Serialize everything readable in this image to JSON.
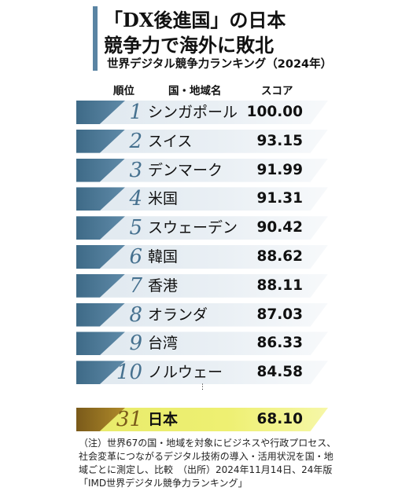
{
  "title": {
    "line1": "「DX後進国」の日本",
    "line2": "競争力で海外に敗北"
  },
  "subtitle": "世界デジタル競争力ランキング（2024年）",
  "headers": {
    "rank": "順位",
    "country": "国・地域名",
    "score": "スコア"
  },
  "colors": {
    "accent": "#5a84a3",
    "band": "#e3ebf1",
    "highlight": "#eef072"
  },
  "chart_data": {
    "type": "table",
    "columns": [
      "順位",
      "国・地域名",
      "スコア"
    ],
    "rows": [
      {
        "rank": "1",
        "country": "シンガポール",
        "score": "100.00"
      },
      {
        "rank": "2",
        "country": "スイス",
        "score": "93.15"
      },
      {
        "rank": "3",
        "country": "デンマーク",
        "score": "91.99"
      },
      {
        "rank": "4",
        "country": "米国",
        "score": "91.31"
      },
      {
        "rank": "5",
        "country": "スウェーデン",
        "score": "90.42"
      },
      {
        "rank": "6",
        "country": "韓国",
        "score": "88.62"
      },
      {
        "rank": "7",
        "country": "香港",
        "score": "88.11"
      },
      {
        "rank": "8",
        "country": "オランダ",
        "score": "87.03"
      },
      {
        "rank": "9",
        "country": "台湾",
        "score": "86.33"
      },
      {
        "rank": "10",
        "country": "ノルウェー",
        "score": "84.58"
      }
    ],
    "highlight": {
      "rank": "31",
      "country": "日本",
      "score": "68.10"
    }
  },
  "ellipsis": "⋮",
  "note": "（注）世界67の国・地域を対象にビジネスや行政プロセス、社会変革につながるデジタル技術の導入・活用状況を国・地域ごとに測定し、比較　（出所）2024年11月14日、24年版「IMD世界デジタル競争力ランキング」"
}
